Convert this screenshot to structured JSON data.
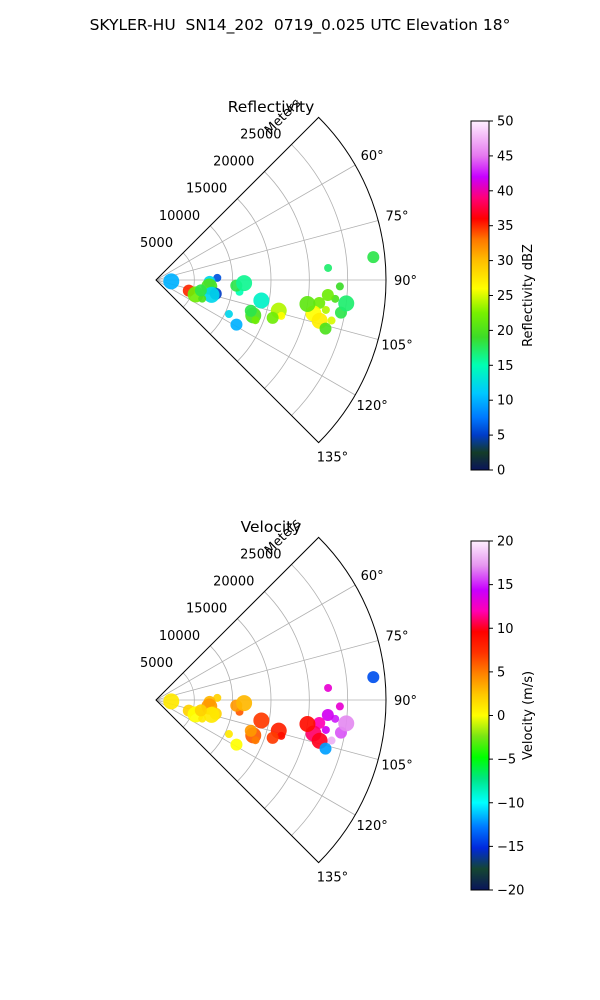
{
  "figure": {
    "title": "SKYLER-HU  SN14_202  0719_0.025 UTC Elevation 18°"
  },
  "chart_data": [
    {
      "type": "heatmap",
      "title": "Reflectivity",
      "projection": "polar-sector",
      "radial_axis": {
        "label": "Meters",
        "ticks": [
          5000,
          10000,
          15000,
          20000,
          25000
        ],
        "tick_labels": [
          "5000",
          "10000",
          "15000",
          "20000",
          "25000"
        ],
        "range": [
          0,
          30000
        ]
      },
      "angular_axis": {
        "ticks_deg": [
          60,
          75,
          90,
          105,
          120,
          135
        ],
        "tick_labels": [
          "60°",
          "75°",
          "90°",
          "105°",
          "120°",
          "135°"
        ],
        "range_deg": [
          45,
          135
        ]
      },
      "colorbar": {
        "label": "Reflectivity dBZ",
        "range": [
          0,
          50
        ],
        "ticks": [
          0,
          5,
          10,
          15,
          20,
          25,
          30,
          35,
          40,
          45,
          50
        ],
        "tick_labels": [
          "0",
          "5",
          "10",
          "15",
          "20",
          "25",
          "30",
          "35",
          "40",
          "45",
          "50"
        ]
      },
      "grid": true,
      "cells": [
        {
          "az": 100,
          "r": 22500,
          "v": 24
        },
        {
          "az": 98,
          "r": 21500,
          "v": 22
        },
        {
          "az": 102,
          "r": 21000,
          "v": 26
        },
        {
          "az": 96,
          "r": 23500,
          "v": 20
        },
        {
          "az": 100,
          "r": 24500,
          "v": 18
        },
        {
          "az": 104,
          "r": 22000,
          "v": 27
        },
        {
          "az": 92,
          "r": 24000,
          "v": 19
        },
        {
          "az": 95,
          "r": 22500,
          "v": 22
        },
        {
          "az": 99,
          "r": 20000,
          "v": 21
        },
        {
          "az": 103,
          "r": 23500,
          "v": 25
        },
        {
          "az": 106,
          "r": 23000,
          "v": 20
        },
        {
          "az": 97,
          "r": 25000,
          "v": 17
        },
        {
          "az": 86,
          "r": 22500,
          "v": 17
        },
        {
          "az": 84,
          "r": 28500,
          "v": 18
        },
        {
          "az": 104,
          "r": 16500,
          "v": 24
        },
        {
          "az": 106,
          "r": 17000,
          "v": 26
        },
        {
          "az": 108,
          "r": 16000,
          "v": 22
        },
        {
          "az": 110,
          "r": 13500,
          "v": 20
        },
        {
          "az": 112,
          "r": 14000,
          "v": 22
        },
        {
          "az": 108,
          "r": 13000,
          "v": 18
        },
        {
          "az": 101,
          "r": 14000,
          "v": 14
        },
        {
          "az": 98,
          "r": 11000,
          "v": 15
        },
        {
          "az": 94,
          "r": 10500,
          "v": 18
        },
        {
          "az": 92,
          "r": 11500,
          "v": 16
        },
        {
          "az": 88,
          "r": 8000,
          "v": 6
        },
        {
          "az": 92,
          "r": 7000,
          "v": 12
        },
        {
          "az": 97,
          "r": 7000,
          "v": 20
        },
        {
          "az": 100,
          "r": 7500,
          "v": 18
        },
        {
          "az": 103,
          "r": 8000,
          "v": 5
        },
        {
          "az": 105,
          "r": 7500,
          "v": 12
        },
        {
          "az": 106,
          "r": 5000,
          "v": 28
        },
        {
          "az": 108,
          "r": 4500,
          "v": 35
        },
        {
          "az": 110,
          "r": 5500,
          "v": 22
        },
        {
          "az": 112,
          "r": 6500,
          "v": 20
        },
        {
          "az": 103,
          "r": 6000,
          "v": 18
        },
        {
          "az": 95,
          "r": 2000,
          "v": 10
        },
        {
          "az": 115,
          "r": 10500,
          "v": 12
        },
        {
          "az": 119,
          "r": 12000,
          "v": 10
        }
      ]
    },
    {
      "type": "heatmap",
      "title": "Velocity",
      "projection": "polar-sector",
      "radial_axis": {
        "label": "Meters",
        "ticks": [
          5000,
          10000,
          15000,
          20000,
          25000
        ],
        "tick_labels": [
          "5000",
          "10000",
          "15000",
          "20000",
          "25000"
        ],
        "range": [
          0,
          30000
        ]
      },
      "angular_axis": {
        "ticks_deg": [
          60,
          75,
          90,
          105,
          120,
          135
        ],
        "tick_labels": [
          "60°",
          "75°",
          "90°",
          "105°",
          "120°",
          "135°"
        ],
        "range_deg": [
          45,
          135
        ]
      },
      "colorbar": {
        "label": "Velocity (m/s)",
        "range": [
          -20,
          20
        ],
        "ticks": [
          -20,
          -15,
          -10,
          -5,
          0,
          5,
          10,
          15,
          20
        ],
        "tick_labels": [
          "−20",
          "−15",
          "−10",
          "−5",
          "0",
          "5",
          "10",
          "15",
          "20"
        ]
      },
      "grid": true,
      "cells": [
        {
          "az": 100,
          "r": 22500,
          "v": 14
        },
        {
          "az": 98,
          "r": 21500,
          "v": 12
        },
        {
          "az": 102,
          "r": 21000,
          "v": 11
        },
        {
          "az": 96,
          "r": 23500,
          "v": 15
        },
        {
          "az": 100,
          "r": 24500,
          "v": 16
        },
        {
          "az": 104,
          "r": 22000,
          "v": 10
        },
        {
          "az": 92,
          "r": 24000,
          "v": 13
        },
        {
          "az": 95,
          "r": 22500,
          "v": 14
        },
        {
          "az": 99,
          "r": 20000,
          "v": 9
        },
        {
          "az": 103,
          "r": 23500,
          "v": 18
        },
        {
          "az": 106,
          "r": 23000,
          "v": -12
        },
        {
          "az": 97,
          "r": 25000,
          "v": 17
        },
        {
          "az": 86,
          "r": 22500,
          "v": 13
        },
        {
          "az": 84,
          "r": 28500,
          "v": -14
        },
        {
          "az": 104,
          "r": 16500,
          "v": 8
        },
        {
          "az": 106,
          "r": 17000,
          "v": 9
        },
        {
          "az": 108,
          "r": 16000,
          "v": 7
        },
        {
          "az": 110,
          "r": 13500,
          "v": 6
        },
        {
          "az": 112,
          "r": 14000,
          "v": 5
        },
        {
          "az": 108,
          "r": 13000,
          "v": 4
        },
        {
          "az": 101,
          "r": 14000,
          "v": 7
        },
        {
          "az": 98,
          "r": 11000,
          "v": 6
        },
        {
          "az": 94,
          "r": 10500,
          "v": 4
        },
        {
          "az": 92,
          "r": 11500,
          "v": 3
        },
        {
          "az": 88,
          "r": 8000,
          "v": 2
        },
        {
          "az": 92,
          "r": 7000,
          "v": 3
        },
        {
          "az": 97,
          "r": 7000,
          "v": 4
        },
        {
          "az": 100,
          "r": 7500,
          "v": 3
        },
        {
          "az": 103,
          "r": 8000,
          "v": 2
        },
        {
          "az": 105,
          "r": 7500,
          "v": 1
        },
        {
          "az": 106,
          "r": 5000,
          "v": 1
        },
        {
          "az": 108,
          "r": 4500,
          "v": 2
        },
        {
          "az": 110,
          "r": 5500,
          "v": 0
        },
        {
          "az": 112,
          "r": 6500,
          "v": 1
        },
        {
          "az": 103,
          "r": 6000,
          "v": 2
        },
        {
          "az": 95,
          "r": 2000,
          "v": 1
        },
        {
          "az": 115,
          "r": 10500,
          "v": 1
        },
        {
          "az": 119,
          "r": 12000,
          "v": 0
        }
      ]
    }
  ]
}
